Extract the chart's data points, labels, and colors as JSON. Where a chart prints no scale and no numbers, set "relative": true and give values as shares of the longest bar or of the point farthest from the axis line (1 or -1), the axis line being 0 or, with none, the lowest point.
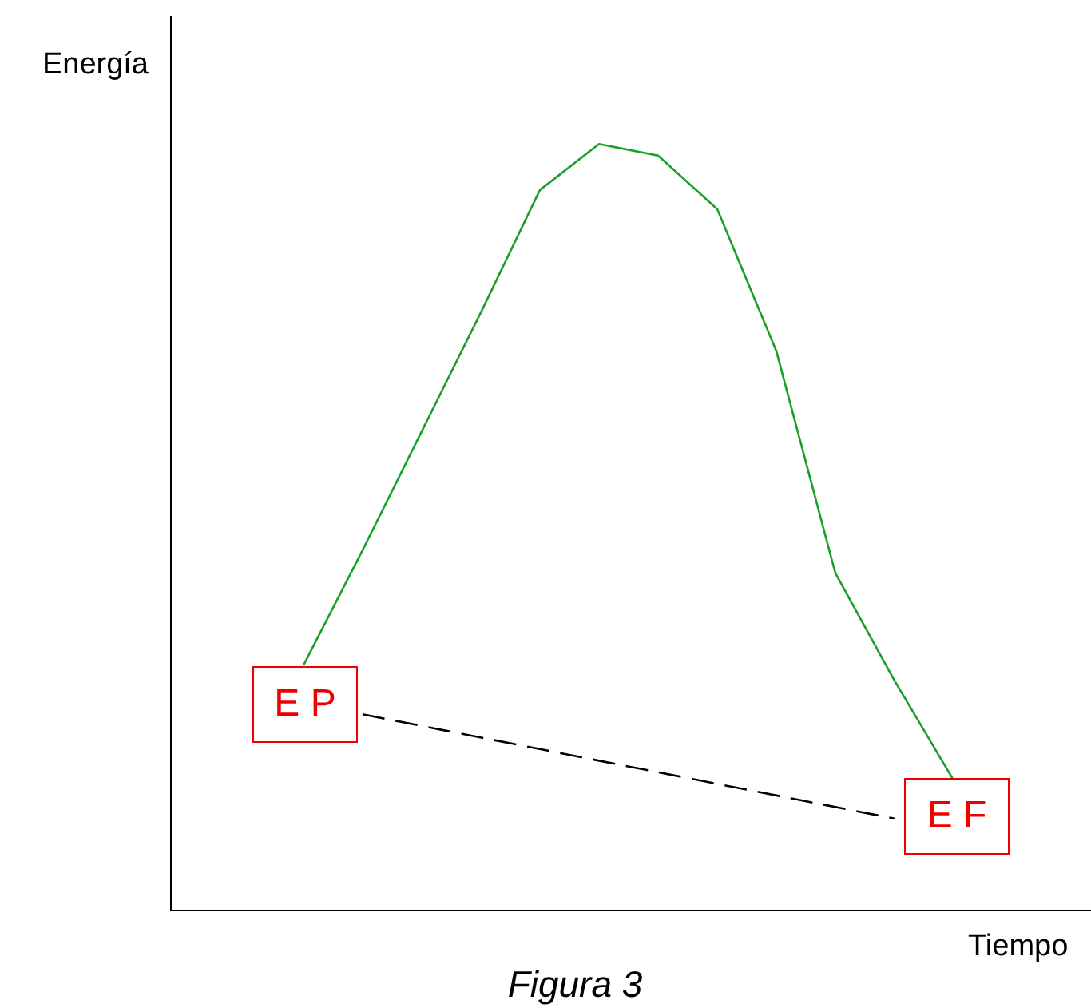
{
  "chart_data": {
    "type": "line",
    "relative": true,
    "title": "Figura 3",
    "xlabel": "Tiempo",
    "ylabel": "Energía",
    "categories": [
      null,
      null,
      null,
      null,
      null,
      null,
      null,
      null,
      null,
      null,
      null,
      null
    ],
    "series": [
      {
        "color": "#1aa02a",
        "values": [
          0.32,
          0.47,
          0.625,
          0.78,
          0.94,
          1,
          0.985,
          0.915,
          0.73,
          0.44,
          0.3,
          0.17
        ]
      },
      {
        "color": "#000000",
        "line_style": "dashed",
        "values": [
          null,
          0.256,
          null,
          null,
          null,
          null,
          null,
          null,
          null,
          null,
          0.12,
          null
        ]
      }
    ],
    "annotations": [
      "E P",
      "E F"
    ],
    "marker": "none",
    "grid": false,
    "legend": false
  }
}
